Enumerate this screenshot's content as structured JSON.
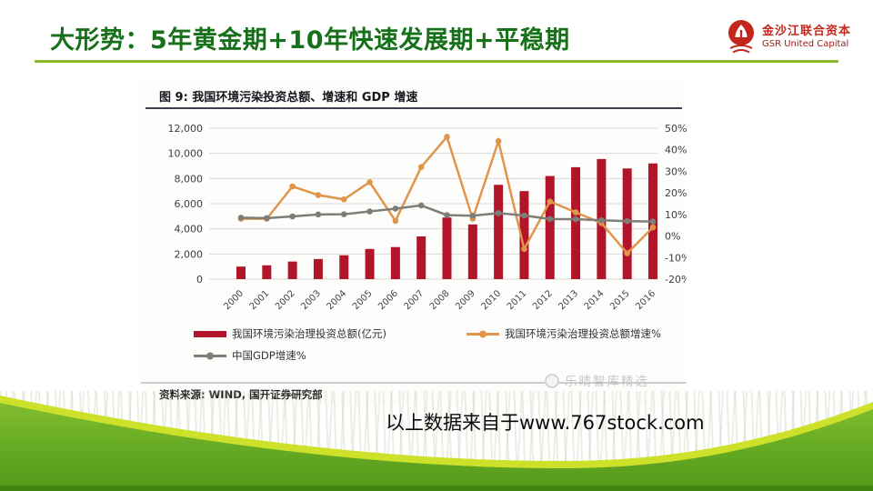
{
  "slide": {
    "title": "大形势：5年黄金期+10年快速发展期+平稳期",
    "title_color": "#17701a",
    "underline_color": "#8ab92c",
    "bottom_note": "以上数据来自于www.767stock.com",
    "footer_colors": {
      "lime_edge": "#cde02a",
      "green_top": "#83bd2f",
      "green_bottom": "#55991a",
      "dark_strip": "#3e7e0f"
    }
  },
  "logo": {
    "name": "金沙江联合资本",
    "subtitle": "GSR United Capital",
    "emblem_color": "#c3271c"
  },
  "figure": {
    "title": "图 9:  我国环境污染投资总额、增速和 GDP 增速",
    "source": "资料来源: WIND, 国开证券研究部",
    "watermark": "乐晴智库精选"
  },
  "chart_data": {
    "type": "bar",
    "title": "图 9: 我国环境污染投资总额、增速和 GDP 增速",
    "categories": [
      "2000",
      "2001",
      "2002",
      "2003",
      "2004",
      "2005",
      "2006",
      "2007",
      "2008",
      "2009",
      "2010",
      "2011",
      "2012",
      "2013",
      "2014",
      "2015",
      "2016"
    ],
    "series": [
      {
        "name": "我国环境污染治理投资总额(亿元)",
        "type": "bar",
        "axis": "left",
        "color": "#b2152a",
        "values": [
          1000,
          1100,
          1400,
          1600,
          1900,
          2400,
          2550,
          3400,
          4900,
          4350,
          7500,
          7000,
          8200,
          8900,
          9550,
          8800,
          9200
        ]
      },
      {
        "name": "我国环境污染治理投资总额增速%",
        "type": "line",
        "axis": "right",
        "color": "#e0964a",
        "values": [
          8,
          8,
          23,
          19,
          17,
          25,
          7,
          32,
          46,
          8,
          44,
          -6,
          16,
          11,
          6,
          -8,
          4
        ]
      },
      {
        "name": "中国GDP增速%",
        "type": "line",
        "axis": "right",
        "color": "#7f7d78",
        "values": [
          8.5,
          8.3,
          9.1,
          10.0,
          10.1,
          11.4,
          12.7,
          14.2,
          9.7,
          9.4,
          10.6,
          9.5,
          7.9,
          7.8,
          7.3,
          6.9,
          6.7
        ]
      }
    ],
    "left_axis": {
      "min": 0,
      "max": 12000,
      "step": 2000,
      "labels": [
        "0",
        "2,000",
        "4,000",
        "6,000",
        "8,000",
        "10,000",
        "12,000"
      ]
    },
    "right_axis": {
      "min": -20,
      "max": 50,
      "step": 10,
      "labels": [
        "-20%",
        "-10%",
        "0%",
        "10%",
        "20%",
        "30%",
        "40%",
        "50%"
      ]
    },
    "grid": true,
    "legend_position": "bottom",
    "grid_color": "#d9d9d9",
    "tick_color": "#3c3c3c"
  }
}
